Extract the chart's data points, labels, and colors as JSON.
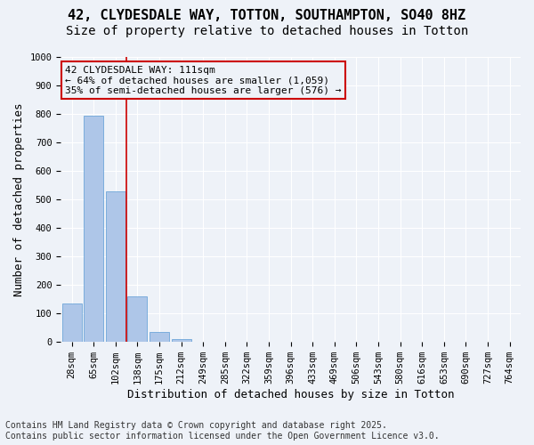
{
  "title_line1": "42, CLYDESDALE WAY, TOTTON, SOUTHAMPTON, SO40 8HZ",
  "title_line2": "Size of property relative to detached houses in Totton",
  "xlabel": "Distribution of detached houses by size in Totton",
  "ylabel": "Number of detached properties",
  "bar_values": [
    135,
    795,
    530,
    160,
    35,
    10,
    0,
    0,
    0,
    0,
    0,
    0,
    0,
    0,
    0,
    0,
    0,
    0,
    0,
    0,
    0
  ],
  "categories": [
    "28sqm",
    "65sqm",
    "102sqm",
    "138sqm",
    "175sqm",
    "212sqm",
    "249sqm",
    "285sqm",
    "322sqm",
    "359sqm",
    "396sqm",
    "433sqm",
    "469sqm",
    "506sqm",
    "543sqm",
    "580sqm",
    "616sqm",
    "653sqm",
    "690sqm",
    "727sqm",
    "764sqm"
  ],
  "bar_color": "#aec6e8",
  "bar_edge_color": "#5b9bd5",
  "vline_x": 2.5,
  "vline_color": "#cc0000",
  "annotation_text": "42 CLYDESDALE WAY: 111sqm\n← 64% of detached houses are smaller (1,059)\n35% of semi-detached houses are larger (576) →",
  "annotation_box_color": "#cc0000",
  "ylim": [
    0,
    1000
  ],
  "yticks": [
    0,
    100,
    200,
    300,
    400,
    500,
    600,
    700,
    800,
    900,
    1000
  ],
  "footnote": "Contains HM Land Registry data © Crown copyright and database right 2025.\nContains public sector information licensed under the Open Government Licence v3.0.",
  "background_color": "#eef2f8",
  "grid_color": "#ffffff",
  "title_fontsize": 11,
  "subtitle_fontsize": 10,
  "axis_label_fontsize": 9,
  "tick_fontsize": 7.5,
  "annotation_fontsize": 8,
  "footnote_fontsize": 7
}
